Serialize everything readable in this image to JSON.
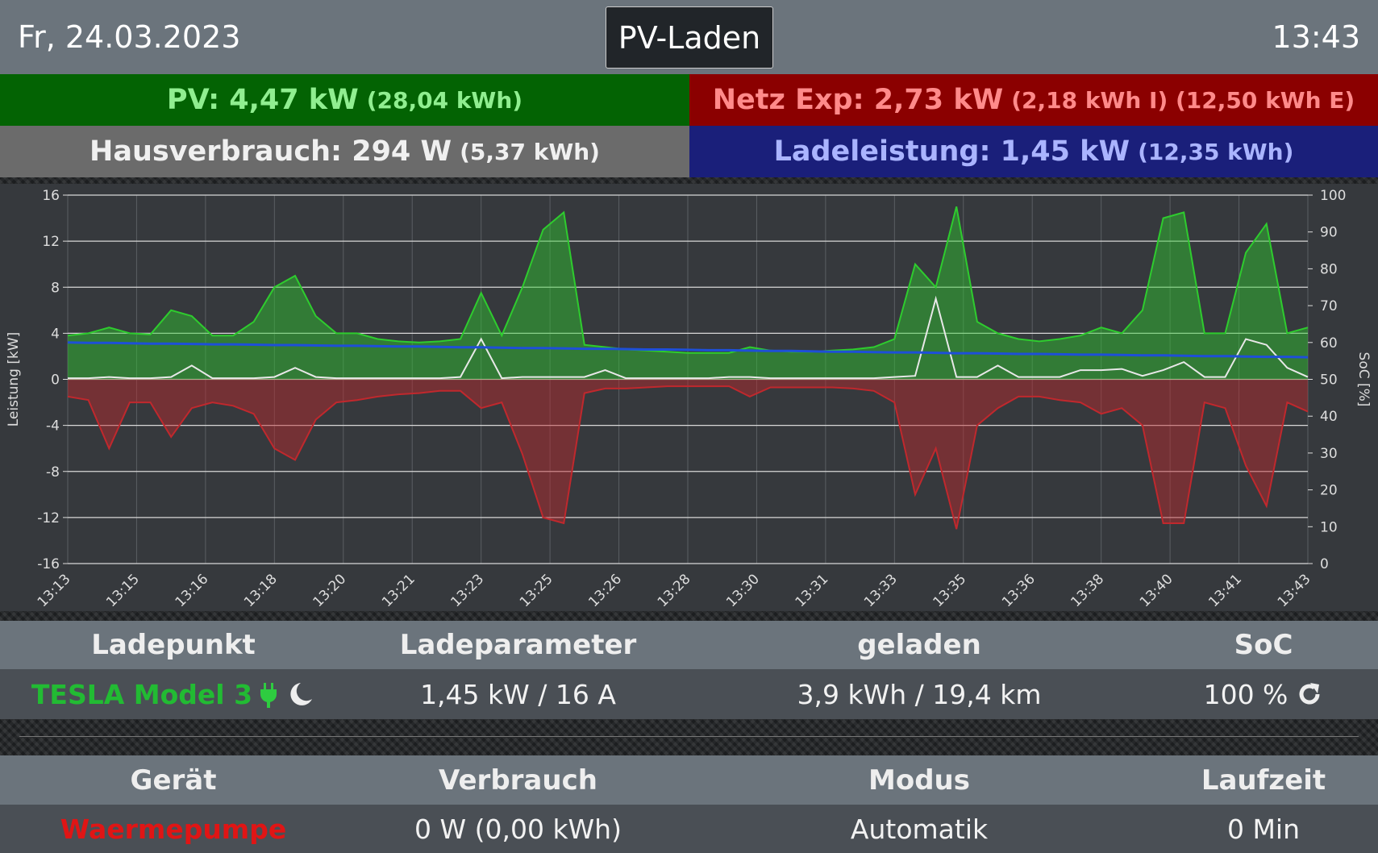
{
  "header": {
    "date": "Fr, 24.03.2023",
    "mode": "PV-Laden",
    "time": "13:43"
  },
  "tiles": {
    "pv": {
      "main": "PV: 4,47 kW",
      "sub": "(28,04 kWh)"
    },
    "grid": {
      "main": "Netz Exp: 2,73 kW",
      "sub": "(2,18 kWh I) (12,50 kWh E)"
    },
    "house": {
      "main": "Hausverbrauch: 294 W",
      "sub": "(5,37 kWh)"
    },
    "charge": {
      "main": "Ladeleistung: 1,45 kW",
      "sub": "(12,35 kWh)"
    }
  },
  "chart_data": {
    "type": "area",
    "ylabel": "Leistung [kW]",
    "y2label": "SoC [%]",
    "xticks": [
      "13:13",
      "13:15",
      "13:16",
      "13:18",
      "13:20",
      "13:21",
      "13:23",
      "13:25",
      "13:26",
      "13:28",
      "13:30",
      "13:31",
      "13:33",
      "13:35",
      "13:36",
      "13:38",
      "13:40",
      "13:41",
      "13:43"
    ],
    "ylim": [
      -16,
      16
    ],
    "yticks": [
      -16,
      -12,
      -8,
      -4,
      0,
      4,
      8,
      12,
      16
    ],
    "y2lim": [
      0,
      100
    ],
    "y2ticks": [
      0,
      10,
      20,
      30,
      40,
      50,
      60,
      70,
      80,
      90,
      100
    ],
    "grid": true,
    "series": [
      {
        "color": "#2ecc2e",
        "fill": true,
        "values": [
          3.8,
          4.0,
          4.5,
          4.0,
          3.9,
          6.0,
          5.5,
          3.8,
          3.8,
          5.0,
          8.0,
          9.0,
          5.5,
          4.0,
          4.0,
          3.5,
          3.3,
          3.2,
          3.3,
          3.5,
          7.5,
          3.8,
          8.0,
          13.0,
          14.5,
          3.0,
          2.8,
          2.6,
          2.5,
          2.4,
          2.3,
          2.3,
          2.3,
          2.8,
          2.5,
          2.4,
          2.4,
          2.5,
          2.6,
          2.8,
          3.5,
          10.0,
          8.0,
          15.0,
          5.0,
          4.0,
          3.5,
          3.3,
          3.5,
          3.8,
          4.5,
          4.0,
          6.0,
          14.0,
          14.5,
          4.0,
          4.0,
          11.0,
          13.5,
          4.0,
          4.5
        ]
      },
      {
        "color": "#c0282d",
        "fill": true,
        "values": [
          -1.5,
          -1.8,
          -6.0,
          -2.0,
          -2.0,
          -5.0,
          -2.5,
          -2.0,
          -2.3,
          -3.0,
          -6.0,
          -7.0,
          -3.5,
          -2.0,
          -1.8,
          -1.5,
          -1.3,
          -1.2,
          -1.0,
          -1.0,
          -2.5,
          -2.0,
          -6.5,
          -12.0,
          -12.5,
          -1.2,
          -0.8,
          -0.8,
          -0.7,
          -0.6,
          -0.6,
          -0.6,
          -0.6,
          -1.5,
          -0.7,
          -0.7,
          -0.7,
          -0.7,
          -0.8,
          -1.0,
          -2.0,
          -10.0,
          -6.0,
          -13.0,
          -4.0,
          -2.5,
          -1.5,
          -1.5,
          -1.8,
          -2.0,
          -3.0,
          -2.5,
          -4.0,
          -12.5,
          -12.5,
          -2.0,
          -2.5,
          -7.5,
          -11.0,
          -2.0,
          -2.8
        ]
      },
      {
        "color": "#e8e8e8",
        "fill": false,
        "values": [
          0.1,
          0.1,
          0.2,
          0.1,
          0.1,
          0.2,
          1.2,
          0.1,
          0.1,
          0.1,
          0.2,
          1.0,
          0.2,
          0.1,
          0.1,
          0.1,
          0.1,
          0.1,
          0.1,
          0.2,
          3.5,
          0.1,
          0.2,
          0.2,
          0.2,
          0.2,
          0.8,
          0.1,
          0.1,
          0.1,
          0.1,
          0.1,
          0.2,
          0.2,
          0.1,
          0.1,
          0.1,
          0.1,
          0.1,
          0.1,
          0.2,
          0.3,
          7.0,
          0.2,
          0.2,
          1.2,
          0.2,
          0.2,
          0.2,
          0.8,
          0.8,
          0.9,
          0.3,
          0.8,
          1.5,
          0.2,
          0.2,
          3.5,
          3.0,
          1.0,
          0.2
        ]
      },
      {
        "color": "#1e4fd8",
        "fill": false,
        "axis": "y2",
        "values": [
          60.0,
          59.9,
          59.9,
          59.8,
          59.7,
          59.7,
          59.6,
          59.5,
          59.5,
          59.4,
          59.3,
          59.3,
          59.2,
          59.1,
          59.1,
          59.0,
          58.9,
          58.9,
          58.8,
          58.7,
          58.7,
          58.6,
          58.5,
          58.5,
          58.4,
          58.3,
          58.3,
          58.2,
          58.1,
          58.1,
          58.0,
          57.9,
          57.9,
          57.8,
          57.7,
          57.7,
          57.6,
          57.5,
          57.5,
          57.4,
          57.3,
          57.3,
          57.2,
          57.1,
          57.1,
          57.0,
          56.9,
          56.9,
          56.8,
          56.7,
          56.7,
          56.6,
          56.5,
          56.5,
          56.4,
          56.3,
          56.3,
          56.2,
          56.1,
          56.1,
          56.0
        ]
      }
    ]
  },
  "chargepoints": {
    "headers": [
      "Ladepunkt",
      "Ladeparameter",
      "geladen",
      "SoC"
    ],
    "rows": [
      [
        "TESLA Model 3",
        "1,45 kW / 16 A",
        "3,9 kWh / 19,4 km",
        "100 %"
      ]
    ]
  },
  "devices": {
    "headers": [
      "Gerät",
      "Verbrauch",
      "Modus",
      "Laufzeit"
    ],
    "rows": [
      [
        "Waermepumpe",
        "0 W (0,00 kWh)",
        "Automatik",
        "0 Min"
      ]
    ]
  }
}
